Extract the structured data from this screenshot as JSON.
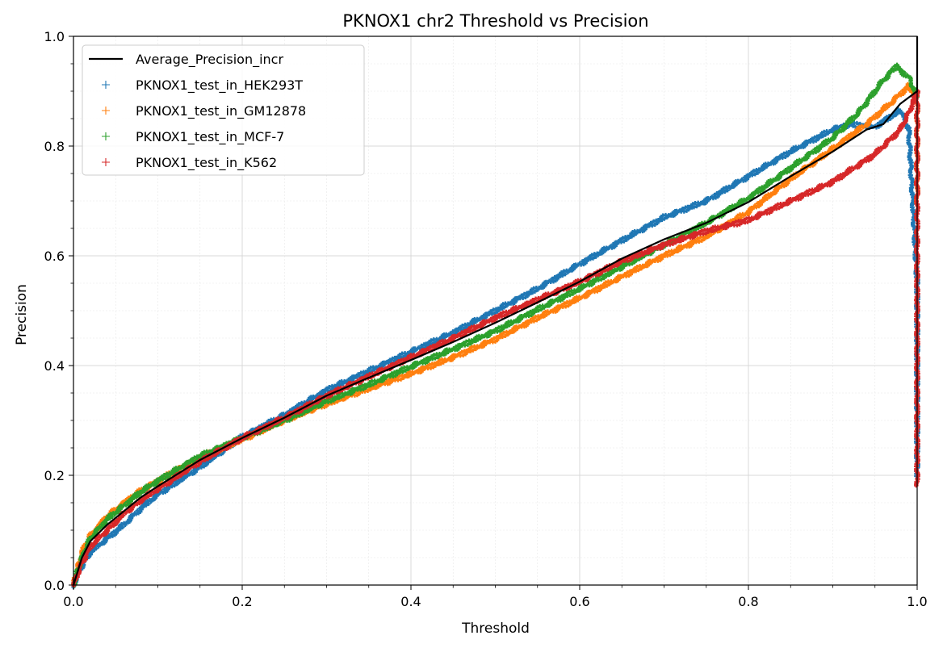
{
  "chart_data": {
    "type": "line",
    "title": "PKNOX1 chr2 Threshold vs Precision",
    "xlabel": "Threshold",
    "ylabel": "Precision",
    "xlim": [
      0,
      1
    ],
    "ylim": [
      0,
      1
    ],
    "xticks": [
      "0.0",
      "0.2",
      "0.4",
      "0.6",
      "0.8",
      "1.0"
    ],
    "yticks": [
      "0.0",
      "0.2",
      "0.4",
      "0.6",
      "0.8",
      "1.0"
    ],
    "grid": true,
    "minor_grid": true,
    "legend_position": "top-left",
    "series": [
      {
        "name": "Average_Precision_incr",
        "style": "line",
        "color": "#000000",
        "points": [
          [
            0,
            0
          ],
          [
            0.01,
            0.05
          ],
          [
            0.02,
            0.08
          ],
          [
            0.04,
            0.11
          ],
          [
            0.06,
            0.135
          ],
          [
            0.08,
            0.16
          ],
          [
            0.1,
            0.18
          ],
          [
            0.15,
            0.228
          ],
          [
            0.2,
            0.268
          ],
          [
            0.25,
            0.305
          ],
          [
            0.3,
            0.345
          ],
          [
            0.35,
            0.378
          ],
          [
            0.4,
            0.41
          ],
          [
            0.45,
            0.443
          ],
          [
            0.5,
            0.478
          ],
          [
            0.55,
            0.515
          ],
          [
            0.6,
            0.553
          ],
          [
            0.65,
            0.595
          ],
          [
            0.7,
            0.63
          ],
          [
            0.75,
            0.66
          ],
          [
            0.8,
            0.698
          ],
          [
            0.85,
            0.745
          ],
          [
            0.9,
            0.79
          ],
          [
            0.94,
            0.83
          ],
          [
            0.96,
            0.84
          ],
          [
            0.98,
            0.877
          ],
          [
            1.0,
            0.9
          ],
          [
            1.0,
            1.0
          ]
        ]
      },
      {
        "name": "PKNOX1_test_in_HEK293T",
        "style": "markers",
        "color": "#1f77b4",
        "points": [
          [
            0,
            0
          ],
          [
            0.01,
            0.035
          ],
          [
            0.02,
            0.06
          ],
          [
            0.04,
            0.085
          ],
          [
            0.06,
            0.11
          ],
          [
            0.08,
            0.14
          ],
          [
            0.1,
            0.165
          ],
          [
            0.15,
            0.215
          ],
          [
            0.2,
            0.27
          ],
          [
            0.25,
            0.31
          ],
          [
            0.3,
            0.355
          ],
          [
            0.35,
            0.39
          ],
          [
            0.4,
            0.425
          ],
          [
            0.45,
            0.46
          ],
          [
            0.5,
            0.5
          ],
          [
            0.55,
            0.54
          ],
          [
            0.6,
            0.585
          ],
          [
            0.65,
            0.628
          ],
          [
            0.7,
            0.67
          ],
          [
            0.75,
            0.7
          ],
          [
            0.8,
            0.745
          ],
          [
            0.85,
            0.79
          ],
          [
            0.9,
            0.83
          ],
          [
            0.92,
            0.84
          ],
          [
            0.95,
            0.835
          ],
          [
            0.98,
            0.865
          ],
          [
            0.99,
            0.83
          ],
          [
            1.0,
            0.55
          ],
          [
            1.0,
            0.2
          ]
        ]
      },
      {
        "name": "PKNOX1_test_in_GM12878",
        "style": "markers",
        "color": "#ff7f0e",
        "points": [
          [
            0,
            0
          ],
          [
            0.01,
            0.06
          ],
          [
            0.02,
            0.09
          ],
          [
            0.04,
            0.125
          ],
          [
            0.06,
            0.15
          ],
          [
            0.08,
            0.172
          ],
          [
            0.1,
            0.19
          ],
          [
            0.15,
            0.232
          ],
          [
            0.2,
            0.265
          ],
          [
            0.25,
            0.3
          ],
          [
            0.3,
            0.33
          ],
          [
            0.35,
            0.358
          ],
          [
            0.4,
            0.385
          ],
          [
            0.45,
            0.415
          ],
          [
            0.5,
            0.448
          ],
          [
            0.55,
            0.487
          ],
          [
            0.6,
            0.523
          ],
          [
            0.65,
            0.562
          ],
          [
            0.7,
            0.6
          ],
          [
            0.75,
            0.635
          ],
          [
            0.8,
            0.68
          ],
          [
            0.85,
            0.74
          ],
          [
            0.9,
            0.795
          ],
          [
            0.94,
            0.84
          ],
          [
            0.97,
            0.88
          ],
          [
            0.99,
            0.91
          ],
          [
            1.0,
            0.88
          ],
          [
            1.0,
            0.7
          ]
        ]
      },
      {
        "name": "PKNOX1_test_in_MCF-7",
        "style": "markers",
        "color": "#2ca02c",
        "points": [
          [
            0,
            0
          ],
          [
            0.01,
            0.05
          ],
          [
            0.02,
            0.085
          ],
          [
            0.04,
            0.12
          ],
          [
            0.06,
            0.145
          ],
          [
            0.08,
            0.17
          ],
          [
            0.1,
            0.19
          ],
          [
            0.15,
            0.235
          ],
          [
            0.2,
            0.268
          ],
          [
            0.25,
            0.3
          ],
          [
            0.3,
            0.335
          ],
          [
            0.35,
            0.365
          ],
          [
            0.4,
            0.398
          ],
          [
            0.45,
            0.43
          ],
          [
            0.5,
            0.463
          ],
          [
            0.55,
            0.502
          ],
          [
            0.6,
            0.54
          ],
          [
            0.65,
            0.58
          ],
          [
            0.7,
            0.62
          ],
          [
            0.75,
            0.66
          ],
          [
            0.8,
            0.705
          ],
          [
            0.85,
            0.76
          ],
          [
            0.9,
            0.815
          ],
          [
            0.93,
            0.86
          ],
          [
            0.96,
            0.92
          ],
          [
            0.975,
            0.945
          ],
          [
            0.99,
            0.925
          ],
          [
            1.0,
            0.89
          ]
        ]
      },
      {
        "name": "PKNOX1_test_in_K562",
        "style": "markers",
        "color": "#d62728",
        "points": [
          [
            0,
            0
          ],
          [
            0.01,
            0.04
          ],
          [
            0.02,
            0.07
          ],
          [
            0.04,
            0.1
          ],
          [
            0.06,
            0.13
          ],
          [
            0.08,
            0.155
          ],
          [
            0.1,
            0.175
          ],
          [
            0.15,
            0.225
          ],
          [
            0.2,
            0.268
          ],
          [
            0.25,
            0.305
          ],
          [
            0.3,
            0.345
          ],
          [
            0.35,
            0.38
          ],
          [
            0.4,
            0.415
          ],
          [
            0.45,
            0.45
          ],
          [
            0.5,
            0.487
          ],
          [
            0.55,
            0.52
          ],
          [
            0.6,
            0.553
          ],
          [
            0.65,
            0.59
          ],
          [
            0.7,
            0.62
          ],
          [
            0.75,
            0.645
          ],
          [
            0.8,
            0.665
          ],
          [
            0.85,
            0.7
          ],
          [
            0.9,
            0.735
          ],
          [
            0.95,
            0.785
          ],
          [
            0.98,
            0.83
          ],
          [
            0.99,
            0.86
          ],
          [
            1.0,
            0.9
          ],
          [
            1.0,
            0.18
          ]
        ]
      }
    ]
  }
}
